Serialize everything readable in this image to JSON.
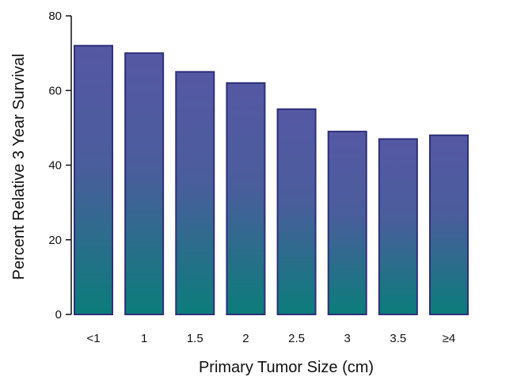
{
  "chart_data": {
    "type": "bar",
    "title": "",
    "xlabel": "Primary Tumor Size (cm)",
    "ylabel": "Percent Relative 3 Year Survival",
    "categories": [
      "<1",
      "1",
      "1.5",
      "2",
      "2.5",
      "3",
      "3.5",
      "≥4"
    ],
    "values": [
      72,
      70,
      65,
      62,
      55,
      49,
      47,
      48
    ],
    "ylim": [
      0,
      80
    ],
    "yticks": [
      0,
      20,
      40,
      60,
      80
    ],
    "grid": false,
    "legend": "none",
    "colors": {
      "bar_top": "#5558a3",
      "bar_bottom": "#0b7d7a",
      "bar_edge": "#2e2f7a"
    }
  }
}
